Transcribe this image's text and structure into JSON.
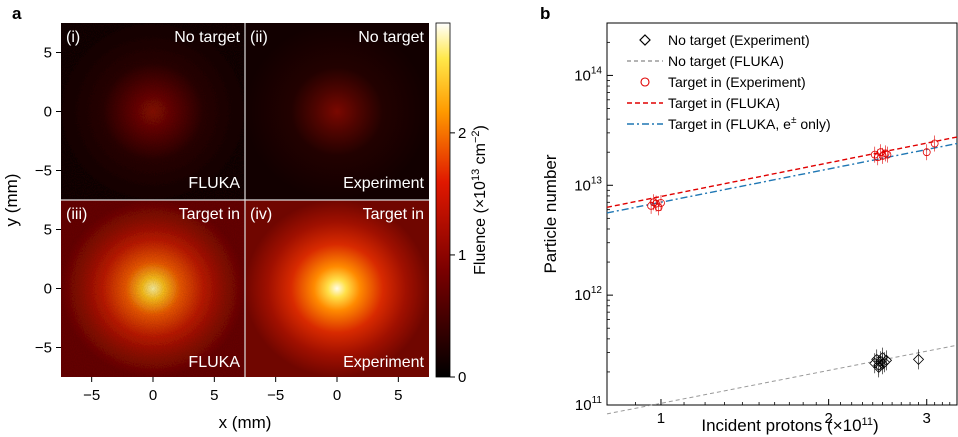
{
  "panel_a": {
    "label": "a",
    "xlabel": "x (mm)",
    "ylabel": "y (mm)",
    "ticks": [
      "−5",
      "0",
      "5"
    ],
    "subpanels": [
      {
        "tag": "(i)",
        "title": "No target",
        "source": "FLUKA"
      },
      {
        "tag": "(ii)",
        "title": "No target",
        "source": "Experiment"
      },
      {
        "tag": "(iii)",
        "title": "Target in",
        "source": "FLUKA"
      },
      {
        "tag": "(iv)",
        "title": "Target in",
        "source": "Experiment"
      }
    ],
    "colorbar": {
      "label_main": "Fluence (×10",
      "label_exp": "13",
      "label_tail": " cm",
      "label_exp2": "−2",
      "label_close": ")",
      "ticks": [
        "0",
        "1",
        "2"
      ],
      "colormap": "hot"
    }
  },
  "panel_b": {
    "label": "b",
    "xlabel_main": "Incident protons (×10",
    "xlabel_exp": "11",
    "xlabel_close": ")",
    "ylabel": "Particle number",
    "x_ticks": [
      "1",
      "2",
      "3"
    ],
    "y_ticks": [
      {
        "base": "10",
        "exp": "11"
      },
      {
        "base": "10",
        "exp": "12"
      },
      {
        "base": "10",
        "exp": "13"
      },
      {
        "base": "10",
        "exp": "14"
      }
    ],
    "legend": [
      {
        "label": "No target (Experiment)",
        "color": "#000000"
      },
      {
        "label": "No target (FLUKA)",
        "color": "#888888"
      },
      {
        "label": "Target in (Experiment)",
        "color": "#e00000"
      },
      {
        "label": "Target in (FLUKA)",
        "color": "#e00000"
      },
      {
        "label": "Target in (FLUKA, e",
        "sup": "±",
        "tail": " only)",
        "color": "#1f77b4"
      }
    ]
  },
  "chart_data": [
    {
      "type": "heatmap",
      "title": "",
      "xlabel": "x (mm)",
      "ylabel": "y (mm)",
      "xlim": [
        -7.5,
        7.5
      ],
      "ylim": [
        -7.5,
        7.5
      ],
      "colorbar_range": [
        0,
        2.9
      ],
      "maps": [
        {
          "name": "(i) No target FLUKA",
          "peak": 0.55,
          "sigma_mm": 1.6
        },
        {
          "name": "(ii) No target Experiment",
          "peak": 0.45,
          "sigma_mm": 1.5
        },
        {
          "name": "(iii) Target in FLUKA",
          "peak": 2.5,
          "sigma_mm": 2.6
        },
        {
          "name": "(iv) Target in Experiment",
          "peak": 2.7,
          "sigma_mm": 2.3
        }
      ]
    },
    {
      "type": "scatter",
      "xlabel": "Incident protons (×10^11)",
      "ylabel": "Particle number",
      "xscale": "log",
      "yscale": "log",
      "xlim": [
        0.8,
        3.4
      ],
      "ylim": [
        100000000000.0,
        300000000000000.0
      ],
      "series": [
        {
          "name": "No target (Experiment)",
          "marker": "diamond",
          "x": [
            2.42,
            2.44,
            2.46,
            2.48,
            2.5,
            2.52,
            2.54,
            2.46,
            2.5,
            2.9
          ],
          "y": [
            240000000000.0,
            260000000000.0,
            230000000000.0,
            250000000000.0,
            270000000000.0,
            245000000000.0,
            255000000000.0,
            220000000000.0,
            235000000000.0,
            260000000000.0
          ]
        },
        {
          "name": "No target (FLUKA)",
          "style": "dashed",
          "x": [
            0.8,
            3.4
          ],
          "y": [
            83000000000.0,
            350000000000.0
          ]
        },
        {
          "name": "Target in (Experiment)",
          "marker": "circle",
          "x": [
            0.96,
            0.97,
            0.98,
            0.99,
            1.0,
            2.42,
            2.45,
            2.48,
            2.5,
            2.53,
            2.55,
            3.0,
            3.1
          ],
          "y": [
            6500000000000.0,
            7000000000000.0,
            6800000000000.0,
            6300000000000.0,
            6900000000000.0,
            19000000000000.0,
            18000000000000.0,
            20000000000000.0,
            18500000000000.0,
            19500000000000.0,
            19000000000000.0,
            20000000000000.0,
            24000000000000.0
          ]
        },
        {
          "name": "Target in (FLUKA)",
          "style": "dashed",
          "x": [
            0.8,
            3.4
          ],
          "y": [
            6300000000000.0,
            27500000000000.0
          ]
        },
        {
          "name": "Target in (FLUKA, e± only)",
          "style": "dashdot",
          "x": [
            0.8,
            3.4
          ],
          "y": [
            5600000000000.0,
            24000000000000.0
          ]
        }
      ]
    }
  ]
}
